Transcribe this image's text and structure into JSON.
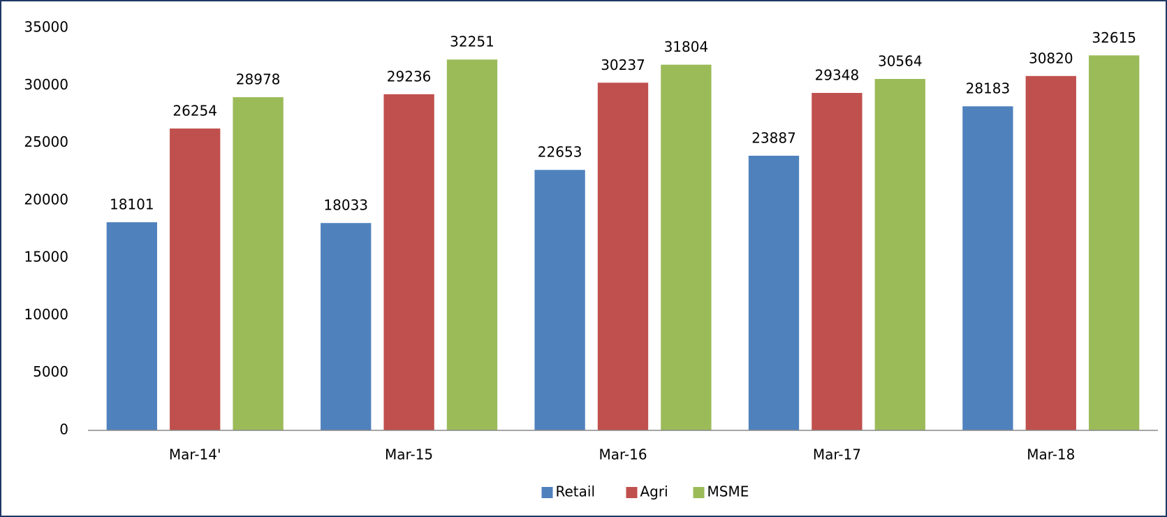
{
  "chart_data": {
    "type": "bar",
    "categories": [
      "Mar-14'",
      "Mar-15",
      "Mar-16",
      "Mar-17",
      "Mar-18"
    ],
    "series": [
      {
        "name": "Retail",
        "color": "#4f81bd",
        "values": [
          18101,
          18033,
          22653,
          23887,
          28183
        ]
      },
      {
        "name": "Agri",
        "color": "#c0504d",
        "values": [
          26254,
          29236,
          30237,
          29348,
          30820
        ]
      },
      {
        "name": "MSME",
        "color": "#9bbb59",
        "values": [
          28978,
          32251,
          31804,
          30564,
          32615
        ]
      }
    ],
    "ylim": [
      0,
      35000
    ],
    "yticks": [
      0,
      5000,
      10000,
      15000,
      20000,
      25000,
      30000,
      35000
    ],
    "grid": false,
    "legend": "bottom"
  }
}
